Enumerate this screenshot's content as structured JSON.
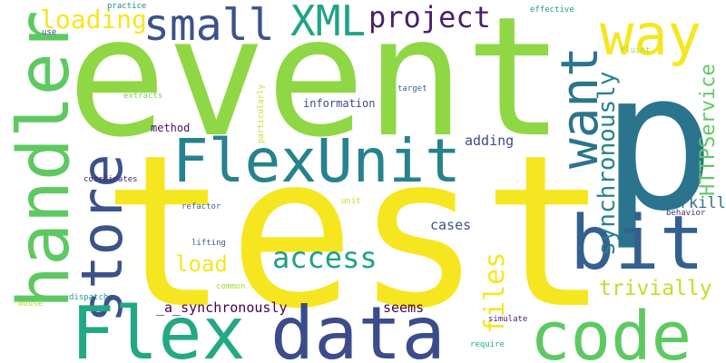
{
  "words": [
    {
      "text": "event",
      "color": "#8fd744"
    },
    {
      "text": "test",
      "color": "#f6e620"
    },
    {
      "text": "p",
      "color": "#2b748e"
    },
    {
      "text": "way",
      "color": "#f6e620"
    },
    {
      "text": "handler",
      "color": "#5ec962"
    },
    {
      "text": "small",
      "color": "#3b528b"
    },
    {
      "text": "XML",
      "color": "#20a486"
    },
    {
      "text": "project",
      "color": "#481f70"
    },
    {
      "text": "loading",
      "color": "#f6e620"
    },
    {
      "text": "FlexUnit",
      "color": "#26828e"
    },
    {
      "text": "want",
      "color": "#2b748e"
    },
    {
      "text": "store",
      "color": "#3b528b"
    },
    {
      "text": "bit",
      "color": "#34608d"
    },
    {
      "text": "Flex",
      "color": "#22a884"
    },
    {
      "text": "data",
      "color": "#3b4c8b"
    },
    {
      "text": "code",
      "color": "#5ec962"
    },
    {
      "text": "files",
      "color": "#f6e620"
    },
    {
      "text": "access",
      "color": "#1fa187"
    },
    {
      "text": "load",
      "color": "#f6e620"
    },
    {
      "text": "synchronously",
      "color": "#26828e"
    },
    {
      "text": "HTTPService",
      "color": "#5ec962"
    },
    {
      "text": "trivially",
      "color": "#c0df25"
    },
    {
      "text": "overkill",
      "color": "#2c728e"
    },
    {
      "text": "_a_synchronously",
      "color": "#440154"
    },
    {
      "text": "seems",
      "color": "#440154"
    },
    {
      "text": "cases",
      "color": "#3b528b"
    },
    {
      "text": "adding",
      "color": "#3e4989"
    },
    {
      "text": "information",
      "color": "#3f4788"
    },
    {
      "text": "method",
      "color": "#481467"
    },
    {
      "text": "practice",
      "color": "#23888e"
    },
    {
      "text": "use",
      "color": "#404387"
    },
    {
      "text": "effective",
      "color": "#1f998a"
    },
    {
      "text": "Fluint",
      "color": "#a2da37"
    },
    {
      "text": "target",
      "color": "#31688e"
    },
    {
      "text": "particularly",
      "color": "#c8e020"
    },
    {
      "text": "extracts",
      "color": "#7fd34e"
    },
    {
      "text": "coordinates",
      "color": "#482475"
    },
    {
      "text": "refactor",
      "color": "#31688e"
    },
    {
      "text": "unit",
      "color": "#c2df23"
    },
    {
      "text": "behavior",
      "color": "#46317e"
    },
    {
      "text": "lifting",
      "color": "#34618d"
    },
    {
      "text": "common",
      "color": "#a0da39"
    },
    {
      "text": "mouse",
      "color": "#addc30"
    },
    {
      "text": "dispatch",
      "color": "#1f9e89"
    },
    {
      "text": "simulate",
      "color": "#482173"
    },
    {
      "text": "require",
      "color": "#26ad81"
    }
  ]
}
